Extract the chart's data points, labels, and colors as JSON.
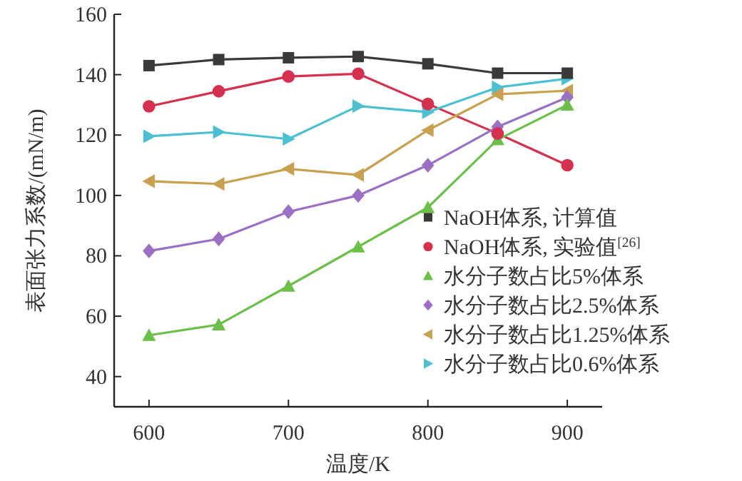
{
  "chart_data": {
    "type": "line",
    "xlabel": "温度/K",
    "ylabel": "表面张力系数/(mN/m)",
    "x": [
      600,
      650,
      700,
      750,
      800,
      850,
      900
    ],
    "xlim": [
      575,
      925
    ],
    "xticks": [
      600,
      700,
      800,
      900
    ],
    "ylim": [
      30,
      160
    ],
    "yticks": [
      40,
      60,
      80,
      100,
      120,
      140,
      160
    ],
    "grid": false,
    "legend": "bottom right",
    "series": [
      {
        "name": "NaOH体系, 计算值",
        "color": "#3a3a3a",
        "marker": "square",
        "values": [
          143,
          145,
          145.6,
          146,
          143.6,
          140.5,
          140.5
        ]
      },
      {
        "name": "NaOH体系, 实验值$^{[26]}$",
        "color": "#d6304f",
        "marker": "circle",
        "values": [
          129.5,
          134.5,
          139.4,
          140.3,
          130.3,
          120.5,
          110
        ]
      },
      {
        "name": "水分子数占比5%体系",
        "color": "#6cc04a",
        "marker": "triangle",
        "values": [
          53.7,
          57.2,
          70,
          83,
          96,
          118.5,
          130
        ]
      },
      {
        "name": "水分子数占比2.5%体系",
        "color": "#9b6fc4",
        "marker": "diamond",
        "values": [
          81.6,
          85.6,
          94.6,
          100,
          110,
          122.7,
          132.5
        ]
      },
      {
        "name": "水分子数占比1.25%体系",
        "color": "#c8a050",
        "marker": "triangle-left",
        "values": [
          104.7,
          103.8,
          108.8,
          106.8,
          121.6,
          133.5,
          134.7
        ]
      },
      {
        "name": "水分子数占比0.6%体系",
        "color": "#4cc0d0",
        "marker": "triangle-right",
        "values": [
          119.6,
          121,
          118.7,
          129.6,
          127.6,
          135.8,
          138.7
        ]
      }
    ]
  }
}
